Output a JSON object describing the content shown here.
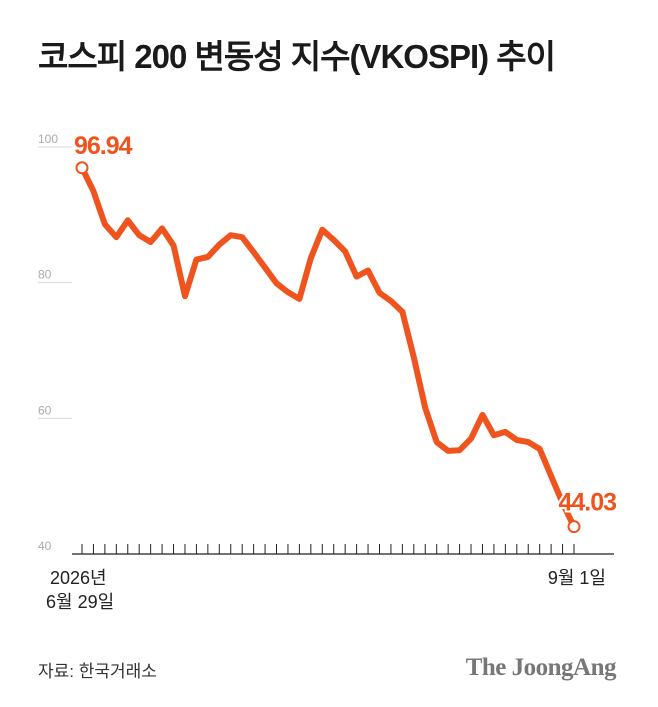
{
  "title": "코스피 200 변동성 지수(VKOSPI) 추이",
  "source": "자료: 한국거래소",
  "brand": "The JoongAng",
  "colors": {
    "line": "#f0541e",
    "grid": "#d8d8d8",
    "axis": "#222222",
    "tick_label": "#aaaaaa",
    "title": "#1a1a1a"
  },
  "chart_data": {
    "type": "line",
    "title": "코스피 200 변동성 지수(VKOSPI) 추이",
    "xlabel": "",
    "ylabel": "",
    "ylim": [
      40,
      100
    ],
    "yticks": [
      100,
      80,
      60,
      40
    ],
    "x_start_label": [
      "2026년",
      "6월 29일"
    ],
    "x_end_label": "9월 1일",
    "grid": true,
    "series": [
      {
        "values": [
          96.94,
          93.5,
          88.6,
          86.7,
          89.2,
          87.0,
          86.0,
          88.0,
          85.5,
          78.0,
          83.4,
          83.8,
          85.6,
          87.0,
          86.7,
          84.5,
          82.2,
          79.9,
          78.6,
          77.6,
          83.6,
          87.8,
          86.3,
          84.6,
          80.9,
          81.8,
          78.5,
          77.3,
          75.7,
          69.0,
          61.5,
          56.5,
          55.2,
          55.3,
          57.0,
          60.5,
          57.5,
          58.0,
          56.8,
          56.5,
          55.5,
          51.5,
          47.5,
          44.03
        ],
        "annotations": [
          {
            "index": 0,
            "label": "96.94"
          },
          {
            "index": 43,
            "label": "44.03"
          }
        ]
      }
    ]
  }
}
